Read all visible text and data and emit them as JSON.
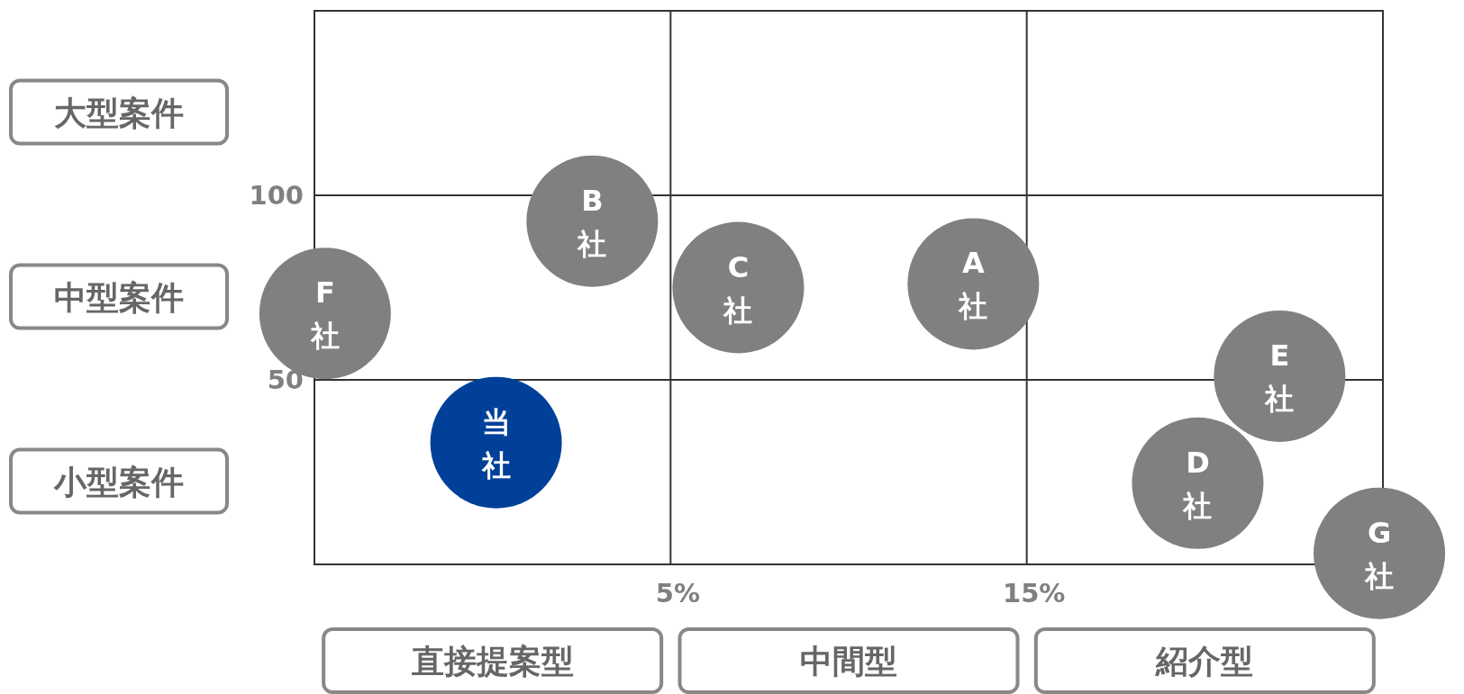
{
  "chart_data": {
    "type": "scatter",
    "xlim": [
      -5,
      25
    ],
    "ylim": [
      0,
      150
    ],
    "xticks": [
      {
        "value": 5,
        "label": "5%"
      },
      {
        "value": 15,
        "label": "15%"
      }
    ],
    "yticks": [
      50,
      100
    ],
    "grid": true,
    "marker": "circle",
    "series": [
      {
        "name": "F社",
        "color": "#808080",
        "x": [
          -4.7
        ],
        "values": [
          68
        ]
      },
      {
        "name": "B社",
        "color": "#808080",
        "x": [
          2.8
        ],
        "values": [
          93
        ]
      },
      {
        "name": "C社",
        "color": "#808080",
        "x": [
          6.9
        ],
        "values": [
          75
        ]
      },
      {
        "name": "A社",
        "color": "#808080",
        "x": [
          13.5
        ],
        "values": [
          76
        ]
      },
      {
        "name": "E社",
        "color": "#808080",
        "x": [
          22.1
        ],
        "values": [
          51
        ]
      },
      {
        "name": "D社",
        "color": "#808080",
        "x": [
          19.8
        ],
        "values": [
          22
        ]
      },
      {
        "name": "G社",
        "color": "#808080",
        "x": [
          24.9
        ],
        "values": [
          3
        ]
      },
      {
        "name": "当社",
        "color": "#004098",
        "x": [
          0.1
        ],
        "values": [
          33
        ]
      }
    ],
    "annotations": [
      "大型案件",
      "中型案件",
      "小型案件",
      "直接提案型",
      "中間型",
      "紹介型"
    ]
  }
}
